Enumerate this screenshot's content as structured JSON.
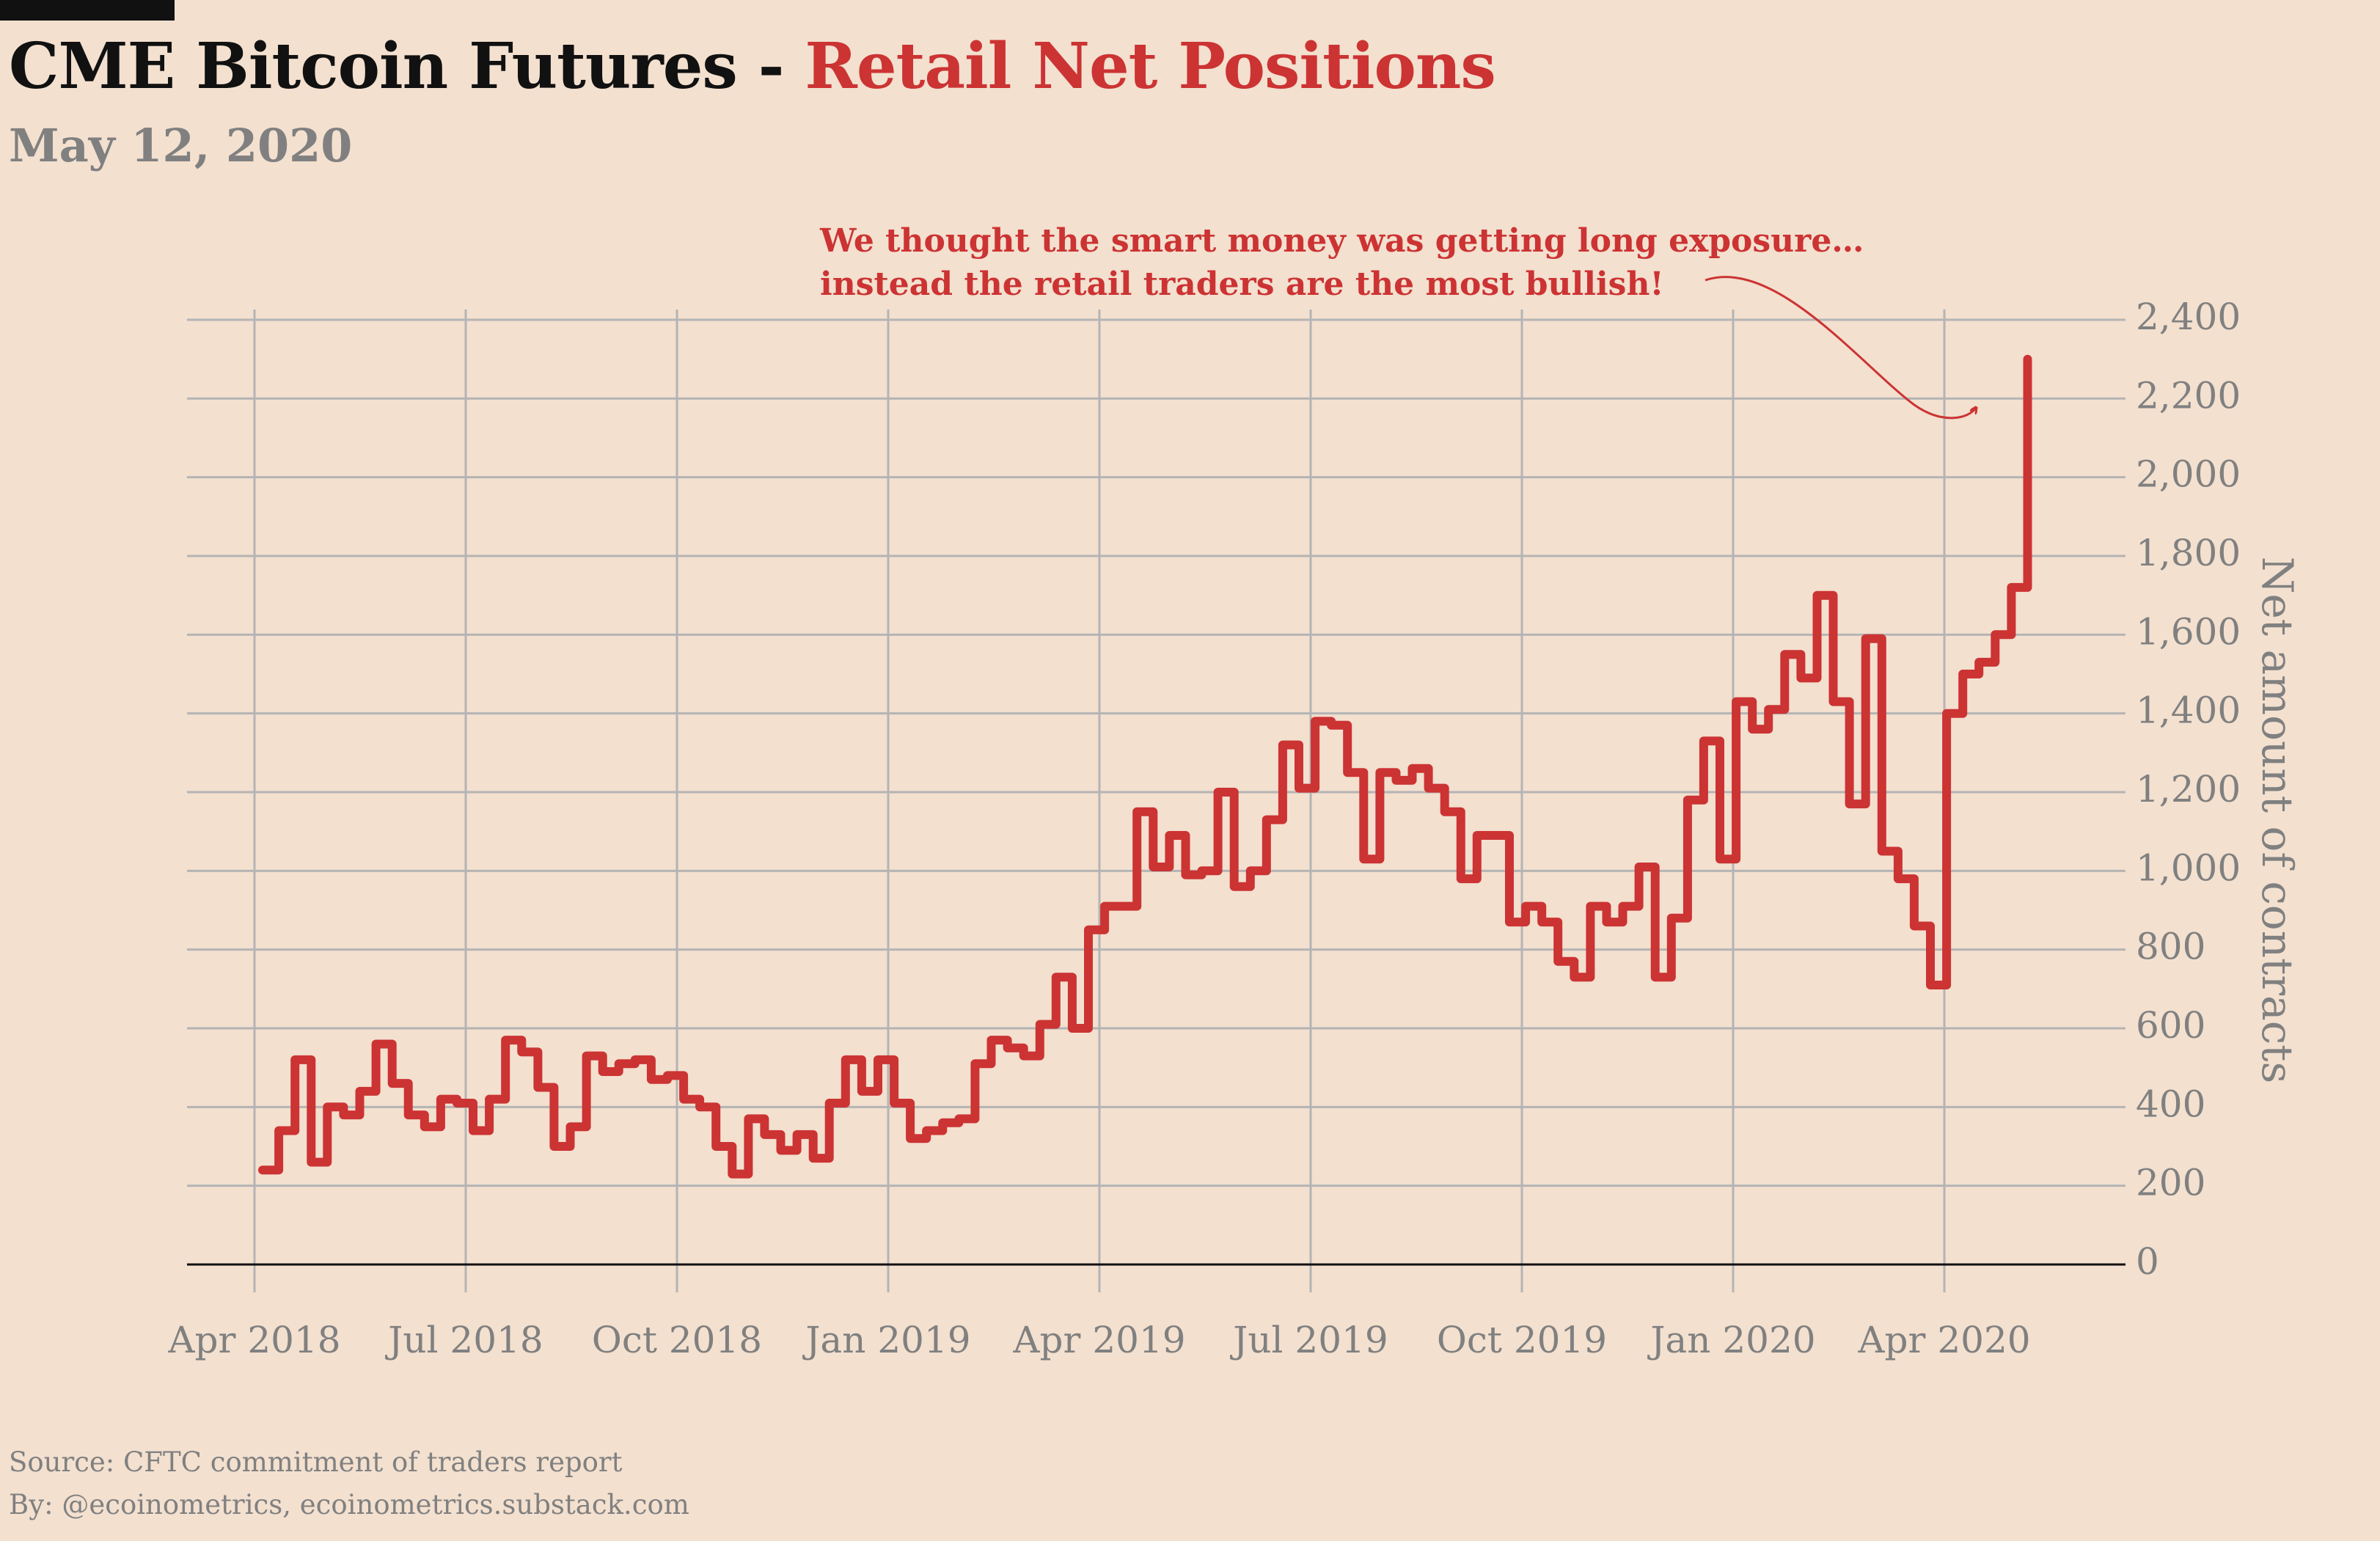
{
  "title": {
    "main": "CME Bitcoin Futures - ",
    "accent": "Retail Net Positions"
  },
  "subtitle": "May 12, 2020",
  "annotation": {
    "line1": "We thought the smart money was getting long exposure…",
    "line2": "instead the retail traders are the most bullish!"
  },
  "footer": {
    "source": "Source: CFTC commitment of traders report",
    "by": "By: @ecoinometrics, ecoinometrics.substack.com"
  },
  "colors": {
    "background": "#f3e0cf",
    "line": "#cc3333",
    "grid": "#b4b4b4",
    "axis_text": "#808080",
    "baseline": "#111111"
  },
  "chart_data": {
    "type": "line",
    "style": "step",
    "title": "CME Bitcoin Futures - Retail Net Positions",
    "ylabel": "Net amount of contracts",
    "xlabel": "",
    "ylim": [
      0,
      2400
    ],
    "y_axis_side": "right",
    "grid": true,
    "yticks": [
      0,
      200,
      400,
      600,
      800,
      1000,
      1200,
      1400,
      1600,
      1800,
      2000,
      2200,
      2400
    ],
    "ytick_labels": [
      "0",
      "200",
      "400",
      "600",
      "800",
      "1,000",
      "1,200",
      "1,400",
      "1,600",
      "1,800",
      "2,000",
      "2,200",
      "2,400"
    ],
    "xticks": [
      {
        "label": "Apr 2018",
        "month_index": 0
      },
      {
        "label": "Jul 2018",
        "month_index": 3
      },
      {
        "label": "Oct 2018",
        "month_index": 6
      },
      {
        "label": "Jan 2019",
        "month_index": 9
      },
      {
        "label": "Apr 2019",
        "month_index": 12
      },
      {
        "label": "Jul 2019",
        "month_index": 15
      },
      {
        "label": "Oct 2019",
        "month_index": 18
      },
      {
        "label": "Jan 2020",
        "month_index": 21
      },
      {
        "label": "Apr 2020",
        "month_index": 24
      }
    ],
    "x_unit": "weeks since 2018-04-03",
    "x_start_label": "2018-04-10",
    "week_values": [
      240,
      340,
      520,
      260,
      400,
      380,
      440,
      560,
      460,
      380,
      350,
      420,
      410,
      340,
      420,
      570,
      540,
      450,
      300,
      350,
      530,
      490,
      510,
      520,
      470,
      480,
      420,
      400,
      300,
      230,
      370,
      330,
      290,
      330,
      270,
      410,
      520,
      440,
      520,
      410,
      320,
      340,
      360,
      370,
      510,
      570,
      550,
      530,
      610,
      730,
      600,
      850,
      910,
      910,
      1150,
      1010,
      1090,
      990,
      1000,
      1200,
      960,
      1000,
      1130,
      1320,
      1210,
      1380,
      1370,
      1250,
      1030,
      1250,
      1230,
      1260,
      1210,
      1150,
      980,
      1090,
      1090,
      870,
      910,
      870,
      770,
      730,
      910,
      870,
      910,
      1010,
      730,
      880,
      1180,
      1330,
      1030,
      1430,
      1360,
      1410,
      1550,
      1490,
      1700,
      1430,
      1170,
      1590,
      1050,
      980,
      860,
      710,
      1400,
      1500,
      1530,
      1600,
      1720,
      2300
    ]
  }
}
